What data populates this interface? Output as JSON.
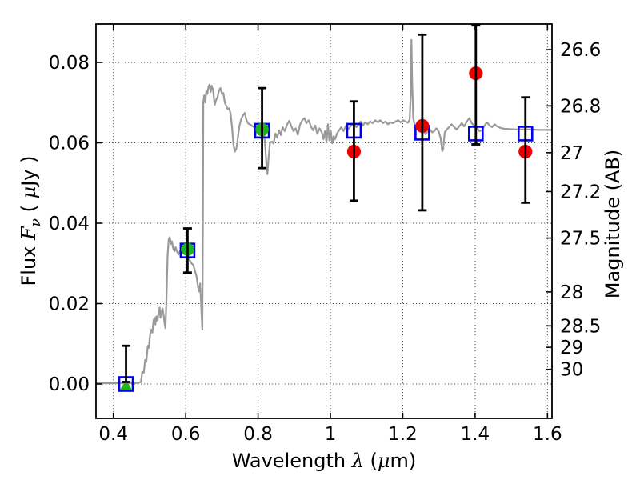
{
  "chart_data": {
    "type": "line",
    "description": "Galaxy SED: gray model spectrum, open blue squares = model photometry, green markers = optical measurements (triangle = upper limit), red circles = near-IR measurements, black error bars; left axis flux in microJansky, right axis AB magnitude",
    "xlim": [
      0.352,
      1.6125
    ],
    "ylim": [
      -0.00856,
      0.08955
    ],
    "grid": true,
    "mag_zeropoint": 23.9,
    "labels": {
      "x_prefix": "Wavelength ",
      "x_lambda": "λ",
      "x_open": " (",
      "x_mu": "μ",
      "x_close": "m)",
      "y_prefix": "Flux ",
      "y_F": "F",
      "y_nu": "ν",
      "y_open": " ( ",
      "y_mu": "μ",
      "y_unit": "Jy )",
      "right_axis": "Magnitude (AB)"
    },
    "x_ticks": [
      {
        "v": 0.4,
        "label": "0.4"
      },
      {
        "v": 0.6,
        "label": "0.6"
      },
      {
        "v": 0.8,
        "label": "0.8"
      },
      {
        "v": 1.0,
        "label": "1"
      },
      {
        "v": 1.2,
        "label": "1.2"
      },
      {
        "v": 1.4,
        "label": "1.4"
      },
      {
        "v": 1.6,
        "label": "1.6"
      }
    ],
    "y_ticks": [
      {
        "v": 0.0,
        "label": "0.00"
      },
      {
        "v": 0.02,
        "label": "0.02"
      },
      {
        "v": 0.04,
        "label": "0.04"
      },
      {
        "v": 0.06,
        "label": "0.06"
      },
      {
        "v": 0.08,
        "label": "0.08"
      }
    ],
    "mag_ticks": [
      {
        "v": 26.6,
        "label": "26.6"
      },
      {
        "v": 26.8,
        "label": "26.8"
      },
      {
        "v": 27,
        "label": "27"
      },
      {
        "v": 27.2,
        "label": "27.2"
      },
      {
        "v": 27.5,
        "label": "27.5"
      },
      {
        "v": 28,
        "label": "28"
      },
      {
        "v": 28.5,
        "label": "28.5"
      },
      {
        "v": 29,
        "label": "29"
      },
      {
        "v": 30,
        "label": "30"
      }
    ],
    "series": {
      "spectrum": {
        "name": "model spectrum",
        "color": "#9a9a9a",
        "points": [
          [
            0.352,
            0.0002
          ],
          [
            0.4,
            0.0002
          ],
          [
            0.44,
            0.0002
          ],
          [
            0.47,
            0.0003
          ],
          [
            0.476,
            0.0005
          ],
          [
            0.48,
            0.003
          ],
          [
            0.484,
            0.0028
          ],
          [
            0.488,
            0.006
          ],
          [
            0.491,
            0.0055
          ],
          [
            0.495,
            0.0095
          ],
          [
            0.498,
            0.009
          ],
          [
            0.502,
            0.0125
          ],
          [
            0.505,
            0.0135
          ],
          [
            0.508,
            0.0128
          ],
          [
            0.511,
            0.0158
          ],
          [
            0.514,
            0.0165
          ],
          [
            0.516,
            0.0148
          ],
          [
            0.519,
            0.0168
          ],
          [
            0.522,
            0.0158
          ],
          [
            0.525,
            0.0178
          ],
          [
            0.528,
            0.019
          ],
          [
            0.53,
            0.0165
          ],
          [
            0.533,
            0.0178
          ],
          [
            0.536,
            0.0188
          ],
          [
            0.539,
            0.017
          ],
          [
            0.542,
            0.0148
          ],
          [
            0.544,
            0.0139
          ],
          [
            0.547,
            0.022
          ],
          [
            0.55,
            0.032
          ],
          [
            0.553,
            0.036
          ],
          [
            0.556,
            0.0365
          ],
          [
            0.559,
            0.0348
          ],
          [
            0.562,
            0.0355
          ],
          [
            0.565,
            0.0338
          ],
          [
            0.569,
            0.033
          ],
          [
            0.572,
            0.034
          ],
          [
            0.576,
            0.033
          ],
          [
            0.58,
            0.0322
          ],
          [
            0.584,
            0.033
          ],
          [
            0.588,
            0.0336
          ],
          [
            0.592,
            0.0338
          ],
          [
            0.596,
            0.0335
          ],
          [
            0.601,
            0.033
          ],
          [
            0.606,
            0.0322
          ],
          [
            0.611,
            0.0308
          ],
          [
            0.616,
            0.03
          ],
          [
            0.621,
            0.0296
          ],
          [
            0.626,
            0.028
          ],
          [
            0.63,
            0.0268
          ],
          [
            0.634,
            0.0242
          ],
          [
            0.637,
            0.023
          ],
          [
            0.64,
            0.025
          ],
          [
            0.643,
            0.019
          ],
          [
            0.646,
            0.0135
          ],
          [
            0.6475,
            0.04
          ],
          [
            0.6485,
            0.07
          ],
          [
            0.651,
            0.0718
          ],
          [
            0.654,
            0.07
          ],
          [
            0.657,
            0.0728
          ],
          [
            0.66,
            0.0722
          ],
          [
            0.663,
            0.074
          ],
          [
            0.666,
            0.0745
          ],
          [
            0.669,
            0.0726
          ],
          [
            0.672,
            0.0742
          ],
          [
            0.676,
            0.073
          ],
          [
            0.68,
            0.0694
          ],
          [
            0.684,
            0.0706
          ],
          [
            0.688,
            0.0714
          ],
          [
            0.692,
            0.073
          ],
          [
            0.696,
            0.0736
          ],
          [
            0.7,
            0.0722
          ],
          [
            0.704,
            0.0724
          ],
          [
            0.708,
            0.07
          ],
          [
            0.712,
            0.0692
          ],
          [
            0.716,
            0.0684
          ],
          [
            0.72,
            0.0686
          ],
          [
            0.724,
            0.0672
          ],
          [
            0.728,
            0.064
          ],
          [
            0.732,
            0.0596
          ],
          [
            0.736,
            0.0578
          ],
          [
            0.74,
            0.0586
          ],
          [
            0.744,
            0.0612
          ],
          [
            0.748,
            0.064
          ],
          [
            0.753,
            0.0658
          ],
          [
            0.758,
            0.0668
          ],
          [
            0.763,
            0.0674
          ],
          [
            0.768,
            0.0656
          ],
          [
            0.773,
            0.0648
          ],
          [
            0.779,
            0.0645
          ],
          [
            0.785,
            0.0641
          ],
          [
            0.791,
            0.0638
          ],
          [
            0.797,
            0.0636
          ],
          [
            0.803,
            0.0641
          ],
          [
            0.809,
            0.0638
          ],
          [
            0.815,
            0.0634
          ],
          [
            0.819,
            0.06
          ],
          [
            0.823,
            0.0548
          ],
          [
            0.826,
            0.0522
          ],
          [
            0.829,
            0.0562
          ],
          [
            0.833,
            0.0601
          ],
          [
            0.838,
            0.0603
          ],
          [
            0.843,
            0.0598
          ],
          [
            0.848,
            0.0623
          ],
          [
            0.853,
            0.0613
          ],
          [
            0.858,
            0.0631
          ],
          [
            0.863,
            0.0619
          ],
          [
            0.868,
            0.0639
          ],
          [
            0.874,
            0.0629
          ],
          [
            0.88,
            0.0645
          ],
          [
            0.886,
            0.0655
          ],
          [
            0.892,
            0.0641
          ],
          [
            0.898,
            0.0629
          ],
          [
            0.904,
            0.0636
          ],
          [
            0.91,
            0.062
          ],
          [
            0.916,
            0.0645
          ],
          [
            0.922,
            0.0656
          ],
          [
            0.928,
            0.0661
          ],
          [
            0.934,
            0.0649
          ],
          [
            0.94,
            0.0656
          ],
          [
            0.946,
            0.0641
          ],
          [
            0.952,
            0.0631
          ],
          [
            0.958,
            0.0643
          ],
          [
            0.964,
            0.0622
          ],
          [
            0.97,
            0.0636
          ],
          [
            0.976,
            0.0626
          ],
          [
            0.981,
            0.0609
          ],
          [
            0.985,
            0.0629
          ],
          [
            0.989,
            0.0601
          ],
          [
            0.993,
            0.0646
          ],
          [
            0.997,
            0.0606
          ],
          [
            1.001,
            0.0629
          ],
          [
            1.005,
            0.0599
          ],
          [
            1.009,
            0.0616
          ],
          [
            1.013,
            0.0609
          ],
          [
            1.018,
            0.0623
          ],
          [
            1.024,
            0.0631
          ],
          [
            1.03,
            0.0639
          ],
          [
            1.036,
            0.0629
          ],
          [
            1.042,
            0.0641
          ],
          [
            1.048,
            0.0633
          ],
          [
            1.054,
            0.0639
          ],
          [
            1.06,
            0.0646
          ],
          [
            1.066,
            0.0643
          ],
          [
            1.072,
            0.0639
          ],
          [
            1.078,
            0.0646
          ],
          [
            1.084,
            0.0653
          ],
          [
            1.09,
            0.0643
          ],
          [
            1.096,
            0.0651
          ],
          [
            1.103,
            0.0646
          ],
          [
            1.11,
            0.0653
          ],
          [
            1.117,
            0.0649
          ],
          [
            1.124,
            0.0656
          ],
          [
            1.131,
            0.0651
          ],
          [
            1.138,
            0.0656
          ],
          [
            1.145,
            0.0649
          ],
          [
            1.152,
            0.0653
          ],
          [
            1.159,
            0.0646
          ],
          [
            1.166,
            0.0651
          ],
          [
            1.173,
            0.0649
          ],
          [
            1.18,
            0.0653
          ],
          [
            1.187,
            0.0656
          ],
          [
            1.194,
            0.0651
          ],
          [
            1.201,
            0.0656
          ],
          [
            1.208,
            0.0653
          ],
          [
            1.215,
            0.065
          ],
          [
            1.219,
            0.0658
          ],
          [
            1.222,
            0.072
          ],
          [
            1.224,
            0.0856
          ],
          [
            1.226,
            0.075
          ],
          [
            1.229,
            0.066
          ],
          [
            1.233,
            0.0645
          ],
          [
            1.239,
            0.0641
          ],
          [
            1.245,
            0.0646
          ],
          [
            1.251,
            0.0641
          ],
          [
            1.257,
            0.0631
          ],
          [
            1.263,
            0.0621
          ],
          [
            1.269,
            0.0629
          ],
          [
            1.275,
            0.0633
          ],
          [
            1.281,
            0.0626
          ],
          [
            1.287,
            0.0629
          ],
          [
            1.293,
            0.0636
          ],
          [
            1.299,
            0.0629
          ],
          [
            1.305,
            0.0611
          ],
          [
            1.309,
            0.0579
          ],
          [
            1.312,
            0.0586
          ],
          [
            1.316,
            0.0626
          ],
          [
            1.322,
            0.0633
          ],
          [
            1.328,
            0.0639
          ],
          [
            1.335,
            0.0646
          ],
          [
            1.342,
            0.0639
          ],
          [
            1.349,
            0.0633
          ],
          [
            1.356,
            0.0641
          ],
          [
            1.363,
            0.0649
          ],
          [
            1.37,
            0.0641
          ],
          [
            1.377,
            0.0653
          ],
          [
            1.384,
            0.0661
          ],
          [
            1.391,
            0.0649
          ],
          [
            1.398,
            0.0641
          ],
          [
            1.405,
            0.0637
          ],
          [
            1.412,
            0.0629
          ],
          [
            1.419,
            0.0631
          ],
          [
            1.426,
            0.0643
          ],
          [
            1.433,
            0.0651
          ],
          [
            1.44,
            0.0643
          ],
          [
            1.447,
            0.0639
          ],
          [
            1.454,
            0.0646
          ],
          [
            1.461,
            0.0641
          ],
          [
            1.47,
            0.0637
          ],
          [
            1.48,
            0.0635
          ],
          [
            1.495,
            0.0634
          ],
          [
            1.515,
            0.0633
          ],
          [
            1.535,
            0.0633
          ],
          [
            1.555,
            0.0633
          ],
          [
            1.575,
            0.0632
          ],
          [
            1.595,
            0.0632
          ],
          [
            1.6125,
            0.0632
          ]
        ]
      },
      "model_squares": {
        "name": "model photometry",
        "marker": "open-square",
        "color": "#0000ee",
        "points": [
          [
            0.435,
            0.0
          ],
          [
            0.605,
            0.0332
          ],
          [
            0.811,
            0.063
          ],
          [
            1.065,
            0.063
          ],
          [
            1.254,
            0.0625
          ],
          [
            1.402,
            0.0623
          ],
          [
            1.539,
            0.0623
          ]
        ]
      },
      "observed_green": {
        "name": "observed optical photometry",
        "color": "#1db41d",
        "points": [
          {
            "x": 0.435,
            "y": 0.0,
            "marker": "triangle-up"
          },
          {
            "x": 0.605,
            "y": 0.0335,
            "marker": "circle"
          },
          {
            "x": 0.811,
            "y": 0.0633,
            "marker": "circle"
          }
        ]
      },
      "observed_red": {
        "name": "observed near-infrared photometry",
        "marker": "circle",
        "color": "#ee0000",
        "points": [
          [
            1.065,
            0.0578
          ],
          [
            1.254,
            0.0642
          ],
          [
            1.402,
            0.0773
          ],
          [
            1.539,
            0.0578
          ]
        ]
      },
      "errorbars": {
        "name": "photometric uncertainties",
        "color": "#000000",
        "bars": [
          {
            "x": 0.435,
            "lo": 0.0005,
            "hi": 0.0095
          },
          {
            "x": 0.605,
            "lo": 0.0277,
            "hi": 0.0387
          },
          {
            "x": 0.811,
            "lo": 0.0537,
            "hi": 0.0736
          },
          {
            "x": 1.065,
            "lo": 0.0456,
            "hi": 0.0703
          },
          {
            "x": 1.254,
            "lo": 0.0432,
            "hi": 0.0869
          },
          {
            "x": 1.402,
            "lo": 0.0596,
            "hi": 0.0892
          },
          {
            "x": 1.539,
            "lo": 0.0451,
            "hi": 0.0713
          }
        ]
      }
    },
    "style": {
      "grid_color": "#3a3a3a",
      "frame_color": "#000000",
      "background": "#ffffff"
    }
  }
}
